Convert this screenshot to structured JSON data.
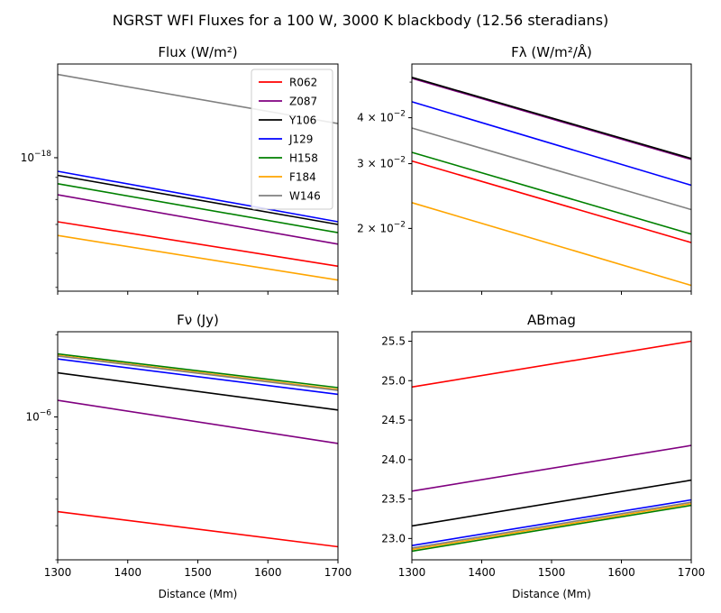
{
  "figure_title": "NGRST WFI Fluxes for a 100 W, 3000 K blackbody (12.56 steradians)",
  "legend": [
    {
      "name": "R062",
      "color": "#ff0000"
    },
    {
      "name": "Z087",
      "color": "#800080"
    },
    {
      "name": "Y106",
      "color": "#000000"
    },
    {
      "name": "J129",
      "color": "#0000ff"
    },
    {
      "name": "H158",
      "color": "#008000"
    },
    {
      "name": "F184",
      "color": "#ffa500"
    },
    {
      "name": "W146",
      "color": "#808080"
    }
  ],
  "chart_data": [
    {
      "type": "line",
      "title": "Flux (W/m²)",
      "xlabel": "",
      "ylabel": "",
      "xlim": [
        1300,
        1700
      ],
      "ylim": [
        4.9e-19,
        1.65e-18
      ],
      "yscale": "log",
      "xticks": [
        1300,
        1400,
        1500,
        1600,
        1700
      ],
      "xtick_labels": [],
      "yticks": [
        {
          "value": 1e-18,
          "mant": "10",
          "exp": "−18"
        }
      ],
      "legend_position": "upper right",
      "series": [
        {
          "name": "R062",
          "color": "#ff0000",
          "x": [
            1300,
            1700
          ],
          "y": [
            7.1e-19,
            5.6e-19
          ]
        },
        {
          "name": "Z087",
          "color": "#800080",
          "x": [
            1300,
            1700
          ],
          "y": [
            8.2e-19,
            6.3e-19
          ]
        },
        {
          "name": "Y106",
          "color": "#000000",
          "x": [
            1300,
            1700
          ],
          "y": [
            9.1e-19,
            7e-19
          ]
        },
        {
          "name": "J129",
          "color": "#0000ff",
          "x": [
            1300,
            1700
          ],
          "y": [
            9.3e-19,
            7.1e-19
          ]
        },
        {
          "name": "H158",
          "color": "#008000",
          "x": [
            1300,
            1700
          ],
          "y": [
            8.7e-19,
            6.7e-19
          ]
        },
        {
          "name": "F184",
          "color": "#ffa500",
          "x": [
            1300,
            1700
          ],
          "y": [
            6.6e-19,
            5.2e-19
          ]
        },
        {
          "name": "W146",
          "color": "#808080",
          "x": [
            1300,
            1700
          ],
          "y": [
            1.56e-18,
            1.2e-18
          ]
        }
      ]
    },
    {
      "type": "line",
      "title": "Fλ (W/m²/Å)",
      "xlabel": "",
      "ylabel": "",
      "xlim": [
        1300,
        1700
      ],
      "ylim": [
        0.0135,
        0.056
      ],
      "yscale": "log",
      "xticks": [
        1300,
        1400,
        1500,
        1600,
        1700
      ],
      "xtick_labels": [],
      "yticks": [
        {
          "value": 0.02,
          "mant": "2 × 10",
          "exp": "−2"
        },
        {
          "value": 0.03,
          "mant": "3 × 10",
          "exp": "−2"
        },
        {
          "value": 0.04,
          "mant": "4 × 10",
          "exp": "−2"
        }
      ],
      "series": [
        {
          "name": "R062",
          "color": "#ff0000",
          "x": [
            1300,
            1700
          ],
          "y": [
            0.0305,
            0.0183
          ]
        },
        {
          "name": "Z087",
          "color": "#800080",
          "x": [
            1300,
            1700
          ],
          "y": [
            0.0512,
            0.0308
          ]
        },
        {
          "name": "Y106",
          "color": "#000000",
          "x": [
            1300,
            1700
          ],
          "y": [
            0.0515,
            0.031
          ]
        },
        {
          "name": "J129",
          "color": "#0000ff",
          "x": [
            1300,
            1700
          ],
          "y": [
            0.0442,
            0.0262
          ]
        },
        {
          "name": "H158",
          "color": "#008000",
          "x": [
            1300,
            1700
          ],
          "y": [
            0.0322,
            0.0193
          ]
        },
        {
          "name": "F184",
          "color": "#ffa500",
          "x": [
            1300,
            1700
          ],
          "y": [
            0.0235,
            0.014
          ]
        },
        {
          "name": "W146",
          "color": "#808080",
          "x": [
            1300,
            1700
          ],
          "y": [
            0.0375,
            0.0225
          ]
        }
      ]
    },
    {
      "type": "line",
      "title": "Fν (Jy)",
      "xlabel": "Distance (Mm)",
      "ylabel": "",
      "xlim": [
        1300,
        1700
      ],
      "ylim": [
        3e-07,
        2.05e-06
      ],
      "yscale": "log",
      "xticks": [
        1300,
        1400,
        1500,
        1600,
        1700
      ],
      "xtick_labels": [
        "1300",
        "1400",
        "1500",
        "1600",
        "1700"
      ],
      "yticks": [
        {
          "value": 1e-06,
          "mant": "10",
          "exp": "−6"
        }
      ],
      "series": [
        {
          "name": "R062",
          "color": "#ff0000",
          "x": [
            1300,
            1700
          ],
          "y": [
            4.5e-07,
            3.35e-07
          ]
        },
        {
          "name": "Z087",
          "color": "#800080",
          "x": [
            1300,
            1700
          ],
          "y": [
            1.15e-06,
            8e-07
          ]
        },
        {
          "name": "Y106",
          "color": "#000000",
          "x": [
            1300,
            1700
          ],
          "y": [
            1.45e-06,
            1.06e-06
          ]
        },
        {
          "name": "J129",
          "color": "#0000ff",
          "x": [
            1300,
            1700
          ],
          "y": [
            1.63e-06,
            1.21e-06
          ]
        },
        {
          "name": "H158",
          "color": "#008000",
          "x": [
            1300,
            1700
          ],
          "y": [
            1.7e-06,
            1.28e-06
          ]
        },
        {
          "name": "F184",
          "color": "#ffa500",
          "x": [
            1300,
            1700
          ],
          "y": [
            1.68e-06,
            1.26e-06
          ]
        },
        {
          "name": "W146",
          "color": "#808080",
          "x": [
            1300,
            1700
          ],
          "y": [
            1.67e-06,
            1.25e-06
          ]
        }
      ]
    },
    {
      "type": "line",
      "title": "ABmag",
      "xlabel": "Distance (Mm)",
      "ylabel": "",
      "xlim": [
        1300,
        1700
      ],
      "ylim": [
        22.73,
        25.62
      ],
      "yscale": "linear",
      "xticks": [
        1300,
        1400,
        1500,
        1600,
        1700
      ],
      "xtick_labels": [
        "1300",
        "1400",
        "1500",
        "1600",
        "1700"
      ],
      "yticks": [
        {
          "value": 23.0,
          "label": "23.0"
        },
        {
          "value": 23.5,
          "label": "23.5"
        },
        {
          "value": 24.0,
          "label": "24.0"
        },
        {
          "value": 24.5,
          "label": "24.5"
        },
        {
          "value": 25.0,
          "label": "25.0"
        },
        {
          "value": 25.5,
          "label": "25.5"
        }
      ],
      "series": [
        {
          "name": "R062",
          "color": "#ff0000",
          "x": [
            1300,
            1700
          ],
          "y": [
            24.92,
            25.5
          ]
        },
        {
          "name": "Z087",
          "color": "#800080",
          "x": [
            1300,
            1700
          ],
          "y": [
            23.6,
            24.18
          ]
        },
        {
          "name": "Y106",
          "color": "#000000",
          "x": [
            1300,
            1700
          ],
          "y": [
            23.16,
            23.74
          ]
        },
        {
          "name": "J129",
          "color": "#0000ff",
          "x": [
            1300,
            1700
          ],
          "y": [
            22.91,
            23.49
          ]
        },
        {
          "name": "H158",
          "color": "#008000",
          "x": [
            1300,
            1700
          ],
          "y": [
            22.84,
            23.42
          ]
        },
        {
          "name": "F184",
          "color": "#ffa500",
          "x": [
            1300,
            1700
          ],
          "y": [
            22.86,
            23.44
          ]
        },
        {
          "name": "W146",
          "color": "#808080",
          "x": [
            1300,
            1700
          ],
          "y": [
            22.88,
            23.46
          ]
        }
      ]
    }
  ]
}
